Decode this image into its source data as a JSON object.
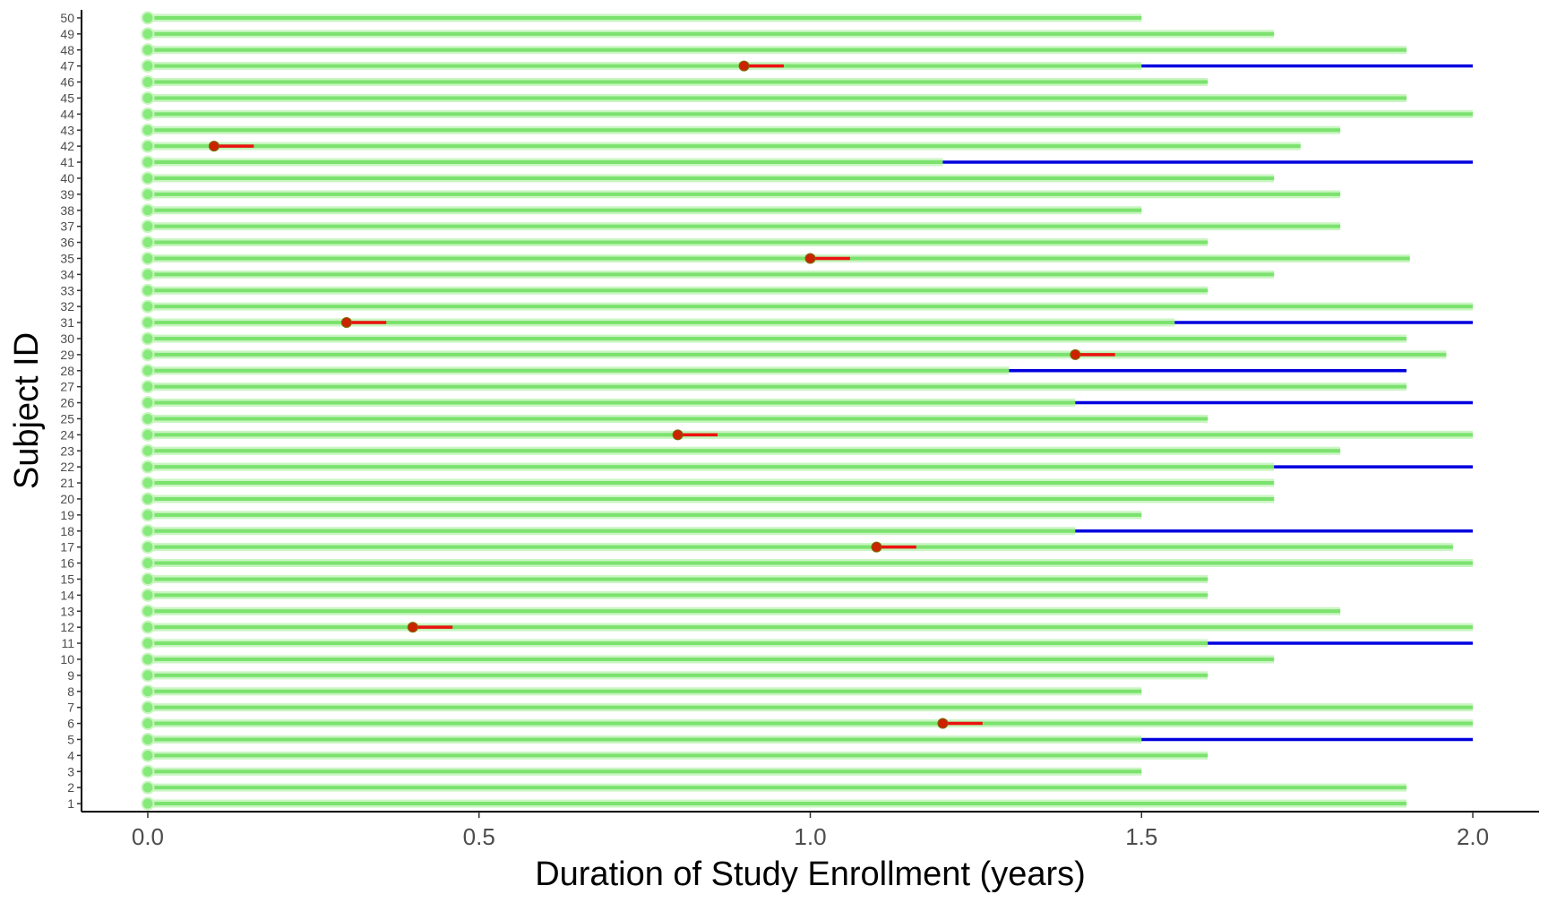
{
  "chart_data": {
    "type": "swimmer",
    "xlabel": "Duration of Study Enrollment (years)",
    "ylabel": "Subject ID",
    "xlim": [
      -0.1,
      2.1
    ],
    "ylim": [
      0.5,
      50.5
    ],
    "x_ticks": [
      0.0,
      0.5,
      1.0,
      1.5,
      2.0
    ],
    "x_tick_labels": [
      "0.0",
      "0.5",
      "1.0",
      "1.5",
      "2.0"
    ],
    "grid": false,
    "legend": "none",
    "colors": {
      "enrollment": "#7be26e",
      "enrollment_halo": "#c9f5c1",
      "start_marker": "#86ea7a",
      "event_segment": "#ee1111",
      "event_marker": "#cc2200",
      "extension": "#0000dd"
    },
    "subjects": [
      {
        "id": "1",
        "duration": 1.9
      },
      {
        "id": "2",
        "duration": 1.9
      },
      {
        "id": "3",
        "duration": 1.5
      },
      {
        "id": "4",
        "duration": 1.6
      },
      {
        "id": "5",
        "duration": 1.5,
        "extension": [
          1.5,
          2.0
        ]
      },
      {
        "id": "6",
        "duration": 2.0,
        "event": [
          1.2,
          1.26
        ]
      },
      {
        "id": "7",
        "duration": 2.0
      },
      {
        "id": "8",
        "duration": 1.5
      },
      {
        "id": "9",
        "duration": 1.6
      },
      {
        "id": "10",
        "duration": 1.7
      },
      {
        "id": "11",
        "duration": 1.6,
        "extension": [
          1.6,
          2.0
        ]
      },
      {
        "id": "12",
        "duration": 2.0,
        "event": [
          0.4,
          0.46
        ]
      },
      {
        "id": "13",
        "duration": 1.8
      },
      {
        "id": "14",
        "duration": 1.6
      },
      {
        "id": "15",
        "duration": 1.6
      },
      {
        "id": "16",
        "duration": 2.0
      },
      {
        "id": "17",
        "duration": 1.97,
        "event": [
          1.1,
          1.16
        ]
      },
      {
        "id": "18",
        "duration": 1.4,
        "extension": [
          1.4,
          2.0
        ]
      },
      {
        "id": "19",
        "duration": 1.5
      },
      {
        "id": "20",
        "duration": 1.7
      },
      {
        "id": "21",
        "duration": 1.7
      },
      {
        "id": "22",
        "duration": 1.7,
        "extension": [
          1.7,
          2.0
        ]
      },
      {
        "id": "23",
        "duration": 1.8
      },
      {
        "id": "24",
        "duration": 2.0,
        "event": [
          0.8,
          0.86
        ]
      },
      {
        "id": "25",
        "duration": 1.6
      },
      {
        "id": "26",
        "duration": 1.4,
        "extension": [
          1.4,
          2.0
        ]
      },
      {
        "id": "27",
        "duration": 1.9
      },
      {
        "id": "28",
        "duration": 1.3,
        "extension": [
          1.3,
          1.9
        ]
      },
      {
        "id": "29",
        "duration": 1.96,
        "event": [
          1.4,
          1.46
        ]
      },
      {
        "id": "30",
        "duration": 1.9
      },
      {
        "id": "31",
        "duration": 1.55,
        "event": [
          0.3,
          0.36
        ],
        "extension": [
          1.55,
          2.0
        ]
      },
      {
        "id": "32",
        "duration": 2.0
      },
      {
        "id": "33",
        "duration": 1.6
      },
      {
        "id": "34",
        "duration": 1.7
      },
      {
        "id": "35",
        "duration": 1.905,
        "event": [
          1.0,
          1.06
        ]
      },
      {
        "id": "36",
        "duration": 1.6
      },
      {
        "id": "37",
        "duration": 1.8
      },
      {
        "id": "38",
        "duration": 1.5
      },
      {
        "id": "39",
        "duration": 1.8
      },
      {
        "id": "40",
        "duration": 1.7
      },
      {
        "id": "41",
        "duration": 1.2,
        "extension": [
          1.2,
          2.0
        ]
      },
      {
        "id": "42",
        "duration": 1.74,
        "event": [
          0.1,
          0.16
        ]
      },
      {
        "id": "43",
        "duration": 1.8
      },
      {
        "id": "44",
        "duration": 2.0
      },
      {
        "id": "45",
        "duration": 1.9
      },
      {
        "id": "46",
        "duration": 1.6
      },
      {
        "id": "47",
        "duration": 1.5,
        "event": [
          0.9,
          0.96
        ],
        "extension": [
          1.5,
          2.0
        ]
      },
      {
        "id": "48",
        "duration": 1.9
      },
      {
        "id": "49",
        "duration": 1.7
      },
      {
        "id": "50",
        "duration": 1.5
      }
    ]
  }
}
